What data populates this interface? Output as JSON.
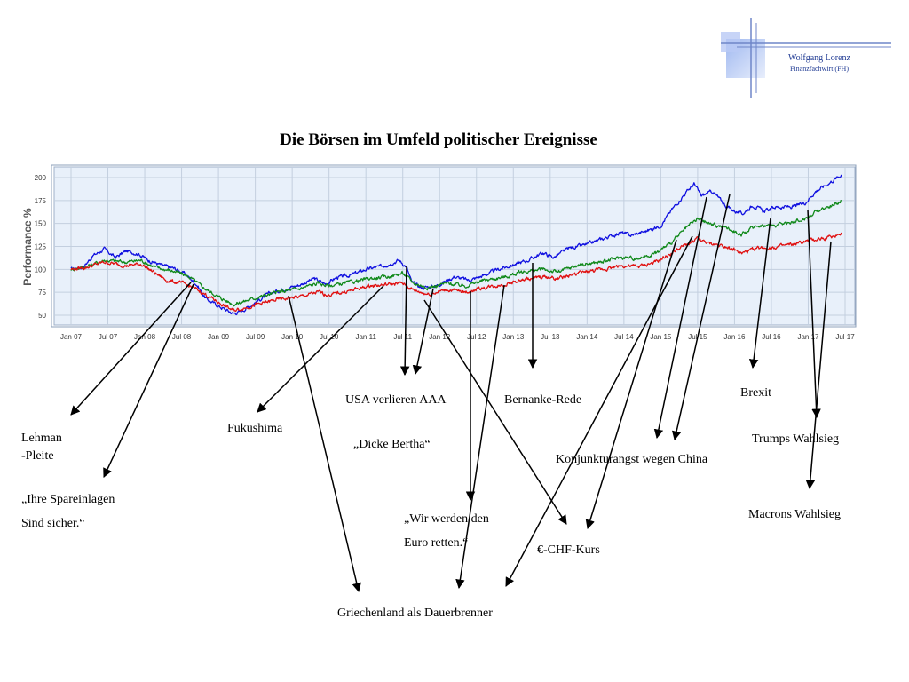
{
  "logo": {
    "name": "Wolfgang Lorenz",
    "subtitle": "Finanzfachwirt (FH)"
  },
  "chart_data": {
    "type": "line",
    "title": "Die Börsen im Umfeld politischer Ereignisse",
    "xlabel": "",
    "ylabel": "Performance %",
    "x_ticks": [
      "Jan 07",
      "Jul 07",
      "Jan 08",
      "Jul 08",
      "Jan 09",
      "Jul 09",
      "Jan 10",
      "Jul 10",
      "Jan 11",
      "Jul 11",
      "Jan 12",
      "Jul 12",
      "Jan 13",
      "Jul 13",
      "Jan 14",
      "Jul 14",
      "Jan 15",
      "Jul 15",
      "Jan 16",
      "Jul 16",
      "Jan 17",
      "Jul 17"
    ],
    "y_ticks": [
      50,
      75,
      100,
      125,
      150,
      175,
      200
    ],
    "ylim": [
      40,
      210
    ],
    "xlim": [
      2007.0,
      2017.6
    ],
    "grid": true,
    "legend": "none",
    "colors": {
      "plot_bg": "#e8f0fa",
      "grid": "#c3cfdf",
      "series": [
        "#1010e0",
        "#10891a",
        "#e01010"
      ]
    },
    "series": [
      {
        "color": "#1010e0",
        "points": [
          [
            2007.0,
            100
          ],
          [
            2007.17,
            103
          ],
          [
            2007.3,
            115
          ],
          [
            2007.45,
            122
          ],
          [
            2007.6,
            113
          ],
          [
            2007.75,
            120
          ],
          [
            2007.92,
            117
          ],
          [
            2008.05,
            110
          ],
          [
            2008.25,
            104
          ],
          [
            2008.4,
            101
          ],
          [
            2008.55,
            95
          ],
          [
            2008.7,
            84
          ],
          [
            2008.83,
            68
          ],
          [
            2009.0,
            60
          ],
          [
            2009.2,
            52
          ],
          [
            2009.3,
            54
          ],
          [
            2009.5,
            64
          ],
          [
            2009.7,
            74
          ],
          [
            2009.9,
            79
          ],
          [
            2010.1,
            83
          ],
          [
            2010.3,
            90
          ],
          [
            2010.45,
            84
          ],
          [
            2010.6,
            91
          ],
          [
            2010.8,
            94
          ],
          [
            2011.0,
            100
          ],
          [
            2011.2,
            103
          ],
          [
            2011.45,
            110
          ],
          [
            2011.55,
            103
          ],
          [
            2011.62,
            86
          ],
          [
            2011.75,
            80
          ],
          [
            2011.95,
            82
          ],
          [
            2012.2,
            92
          ],
          [
            2012.4,
            88
          ],
          [
            2012.55,
            92
          ],
          [
            2012.8,
            100
          ],
          [
            2013.0,
            105
          ],
          [
            2013.2,
            110
          ],
          [
            2013.4,
            118
          ],
          [
            2013.55,
            113
          ],
          [
            2013.75,
            123
          ],
          [
            2014.0,
            127
          ],
          [
            2014.2,
            133
          ],
          [
            2014.45,
            140
          ],
          [
            2014.6,
            137
          ],
          [
            2014.85,
            143
          ],
          [
            2015.0,
            148
          ],
          [
            2015.15,
            165
          ],
          [
            2015.3,
            180
          ],
          [
            2015.45,
            193
          ],
          [
            2015.55,
            180
          ],
          [
            2015.7,
            185
          ],
          [
            2015.9,
            168
          ],
          [
            2016.1,
            160
          ],
          [
            2016.25,
            170
          ],
          [
            2016.4,
            163
          ],
          [
            2016.55,
            168
          ],
          [
            2016.8,
            168
          ],
          [
            2016.95,
            172
          ],
          [
            2017.1,
            185
          ],
          [
            2017.3,
            195
          ],
          [
            2017.45,
            203
          ]
        ]
      },
      {
        "color": "#10891a",
        "points": [
          [
            2007.0,
            100
          ],
          [
            2007.2,
            103
          ],
          [
            2007.45,
            110
          ],
          [
            2007.75,
            108
          ],
          [
            2007.95,
            110
          ],
          [
            2008.15,
            102
          ],
          [
            2008.4,
            98
          ],
          [
            2008.6,
            92
          ],
          [
            2008.8,
            80
          ],
          [
            2009.0,
            70
          ],
          [
            2009.2,
            62
          ],
          [
            2009.3,
            64
          ],
          [
            2009.55,
            70
          ],
          [
            2009.8,
            75
          ],
          [
            2010.1,
            79
          ],
          [
            2010.35,
            85
          ],
          [
            2010.5,
            82
          ],
          [
            2010.8,
            86
          ],
          [
            2011.05,
            90
          ],
          [
            2011.3,
            92
          ],
          [
            2011.5,
            96
          ],
          [
            2011.65,
            85
          ],
          [
            2011.85,
            80
          ],
          [
            2012.1,
            85
          ],
          [
            2012.35,
            82
          ],
          [
            2012.6,
            88
          ],
          [
            2012.9,
            92
          ],
          [
            2013.1,
            97
          ],
          [
            2013.4,
            100
          ],
          [
            2013.6,
            97
          ],
          [
            2013.9,
            105
          ],
          [
            2014.2,
            108
          ],
          [
            2014.45,
            113
          ],
          [
            2014.7,
            112
          ],
          [
            2014.95,
            118
          ],
          [
            2015.15,
            130
          ],
          [
            2015.35,
            145
          ],
          [
            2015.5,
            155
          ],
          [
            2015.65,
            150
          ],
          [
            2015.9,
            145
          ],
          [
            2016.1,
            138
          ],
          [
            2016.3,
            148
          ],
          [
            2016.55,
            148
          ],
          [
            2016.8,
            152
          ],
          [
            2016.95,
            155
          ],
          [
            2017.15,
            165
          ],
          [
            2017.35,
            170
          ],
          [
            2017.45,
            175
          ]
        ]
      },
      {
        "color": "#e01010",
        "points": [
          [
            2007.0,
            100
          ],
          [
            2007.2,
            102
          ],
          [
            2007.45,
            108
          ],
          [
            2007.75,
            104
          ],
          [
            2007.95,
            106
          ],
          [
            2008.1,
            98
          ],
          [
            2008.3,
            88
          ],
          [
            2008.55,
            84
          ],
          [
            2008.75,
            76
          ],
          [
            2009.0,
            64
          ],
          [
            2009.2,
            55
          ],
          [
            2009.3,
            57
          ],
          [
            2009.55,
            62
          ],
          [
            2009.8,
            67
          ],
          [
            2010.1,
            70
          ],
          [
            2010.35,
            75
          ],
          [
            2010.5,
            72
          ],
          [
            2010.8,
            77
          ],
          [
            2011.05,
            82
          ],
          [
            2011.35,
            84
          ],
          [
            2011.5,
            85
          ],
          [
            2011.65,
            77
          ],
          [
            2011.85,
            73
          ],
          [
            2012.1,
            78
          ],
          [
            2012.35,
            75
          ],
          [
            2012.6,
            80
          ],
          [
            2012.9,
            84
          ],
          [
            2013.1,
            88
          ],
          [
            2013.4,
            92
          ],
          [
            2013.6,
            90
          ],
          [
            2013.9,
            96
          ],
          [
            2014.2,
            100
          ],
          [
            2014.45,
            104
          ],
          [
            2014.7,
            103
          ],
          [
            2014.95,
            108
          ],
          [
            2015.15,
            118
          ],
          [
            2015.35,
            127
          ],
          [
            2015.5,
            133
          ],
          [
            2015.65,
            128
          ],
          [
            2015.9,
            125
          ],
          [
            2016.1,
            117
          ],
          [
            2016.3,
            123
          ],
          [
            2016.55,
            124
          ],
          [
            2016.8,
            127
          ],
          [
            2016.95,
            130
          ],
          [
            2017.15,
            133
          ],
          [
            2017.35,
            136
          ],
          [
            2017.45,
            140
          ]
        ]
      }
    ],
    "annotations": [
      {
        "text": "Lehman\n-Pleite"
      },
      {
        "text": "„Ihre Spareinlagen\nSind sicher.“"
      },
      {
        "text": "Fukushima"
      },
      {
        "text": "Griechenland als Dauerbrenner"
      },
      {
        "text": "USA verlieren AAA"
      },
      {
        "text": "„Dicke Bertha“"
      },
      {
        "text": "„Wir werden den\nEuro retten.“"
      },
      {
        "text": "Bernanke-Rede"
      },
      {
        "text": "€-CHF-Kurs"
      },
      {
        "text": "Konjunkturangst wegen China"
      },
      {
        "text": "Brexit"
      },
      {
        "text": "Trumps Wahlsieg"
      },
      {
        "text": "Macrons Wahlsieg"
      }
    ]
  }
}
